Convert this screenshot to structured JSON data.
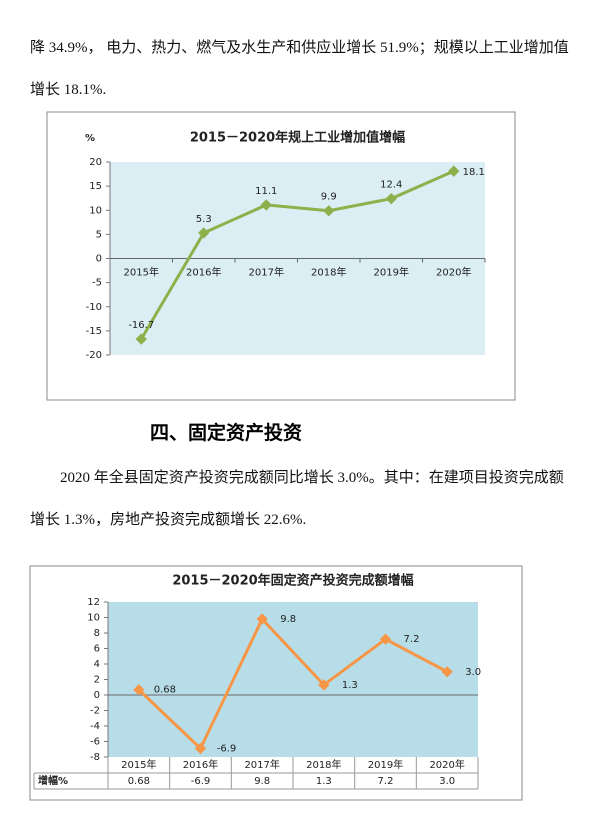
{
  "paragraphs": [
    "降 34.9%， 电力、热力、燃气及水生产和供应业增长 51.9%；规模以上工业增加值增长 18.1%.",
    "2020 年全县固定资产投资完成额同比增长 3.0%。其中：在建项目投资完成额增长 1.3%，房地产投资完成额增长 22.6%."
  ],
  "heading": "四、固定资产投资",
  "chart_data": [
    {
      "type": "line",
      "title": "2015－2020年规上工业增加值增幅",
      "y_label": "%",
      "categories": [
        "2015年",
        "2016年",
        "2017年",
        "2018年",
        "2019年",
        "2020年"
      ],
      "values": [
        -16.7,
        5.3,
        11.1,
        9.9,
        12.4,
        18.1
      ],
      "color": "#8db04a",
      "ylim": [
        -20,
        20
      ],
      "yticks": [
        -20,
        -15,
        -10,
        -5,
        0,
        5,
        10,
        15,
        20
      ],
      "grid": false
    },
    {
      "type": "line",
      "title": "2015－2020年固定资产投资完成额增幅",
      "categories": [
        "2015年",
        "2016年",
        "2017年",
        "2018年",
        "2019年",
        "2020年"
      ],
      "values": [
        0.68,
        -6.9,
        9.8,
        1.3,
        7.2,
        3.0
      ],
      "value_labels": [
        "0.68",
        "-6.9",
        "9.8",
        "1.3",
        "7.2",
        "3.0"
      ],
      "table_label": "增幅%",
      "color": "#f79646",
      "ylim": [
        -8,
        12
      ],
      "yticks": [
        -8,
        -6,
        -4,
        -2,
        0,
        2,
        4,
        6,
        8,
        10,
        12
      ],
      "grid": false
    }
  ]
}
